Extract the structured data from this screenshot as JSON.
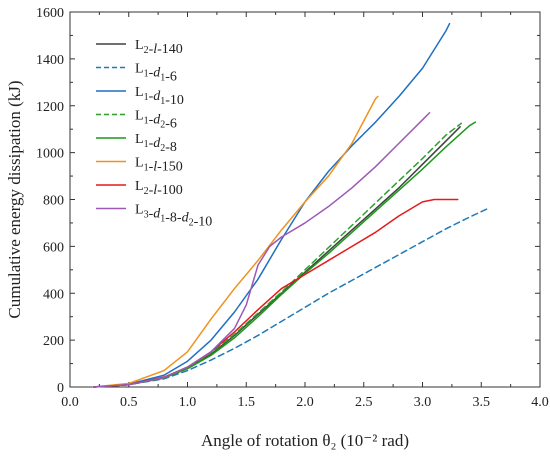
{
  "chart_data": {
    "type": "line",
    "title": "",
    "xlabel": "Angle of rotation θ₂ (10⁻² rad)",
    "ylabel": "Cumulative energy dissipation (kJ)",
    "xlim": [
      0.0,
      4.0
    ],
    "ylim": [
      0,
      1600
    ],
    "xticks": [
      "0.0",
      "0.5",
      "1.0",
      "1.5",
      "2.0",
      "2.5",
      "3.0",
      "3.5",
      "4.0"
    ],
    "yticks": [
      "0",
      "200",
      "400",
      "600",
      "800",
      "1000",
      "1200",
      "1400",
      "1600"
    ],
    "grid": false,
    "legend_position": "top-left",
    "series": [
      {
        "name": "L2-l-140",
        "label_parts": [
          [
            "L",
            ""
          ],
          [
            "2",
            "sub"
          ],
          [
            "-",
            ""
          ],
          [
            "l",
            "it"
          ],
          [
            "-140",
            ""
          ]
        ],
        "color": "#404040",
        "dash": "solid",
        "x": [
          0.2,
          0.5,
          0.8,
          1.0,
          1.2,
          1.4,
          1.6,
          1.8,
          2.0,
          2.2,
          2.4,
          2.6,
          2.8,
          3.0,
          3.2,
          3.32
        ],
        "y": [
          0,
          10,
          40,
          80,
          140,
          220,
          310,
          400,
          490,
          580,
          670,
          760,
          850,
          950,
          1050,
          1110
        ]
      },
      {
        "name": "L1-d1-6",
        "label_parts": [
          [
            "L",
            ""
          ],
          [
            "1",
            "sub"
          ],
          [
            "-",
            ""
          ],
          [
            "d",
            "it"
          ],
          [
            "1",
            "sub"
          ],
          [
            "-6",
            ""
          ]
        ],
        "color": "#1f7ab5",
        "dash": "dashed",
        "x": [
          0.2,
          0.5,
          0.8,
          1.0,
          1.2,
          1.4,
          1.6,
          1.8,
          2.0,
          2.2,
          2.4,
          2.6,
          2.8,
          3.0,
          3.2,
          3.4,
          3.55
        ],
        "y": [
          0,
          10,
          35,
          70,
          115,
          165,
          220,
          280,
          340,
          400,
          455,
          510,
          565,
          620,
          675,
          725,
          760
        ]
      },
      {
        "name": "L1-d1-10",
        "label_parts": [
          [
            "L",
            ""
          ],
          [
            "1",
            "sub"
          ],
          [
            "-",
            ""
          ],
          [
            "d",
            "it"
          ],
          [
            "1",
            "sub"
          ],
          [
            "-10",
            ""
          ]
        ],
        "color": "#1f6fc2",
        "dash": "solid",
        "x": [
          0.2,
          0.5,
          0.8,
          1.0,
          1.2,
          1.4,
          1.6,
          1.8,
          2.0,
          2.2,
          2.4,
          2.6,
          2.8,
          3.0,
          3.2,
          3.23
        ],
        "y": [
          0,
          12,
          50,
          110,
          200,
          320,
          460,
          630,
          790,
          920,
          1030,
          1130,
          1240,
          1360,
          1520,
          1550
        ]
      },
      {
        "name": "L1-d2-6",
        "label_parts": [
          [
            "L",
            ""
          ],
          [
            "1",
            "sub"
          ],
          [
            "-",
            ""
          ],
          [
            "d",
            "it"
          ],
          [
            "2",
            "sub"
          ],
          [
            "-6",
            ""
          ]
        ],
        "color": "#2ca02c",
        "dash": "dashed",
        "x": [
          0.2,
          0.5,
          0.8,
          1.0,
          1.2,
          1.4,
          1.6,
          1.8,
          2.0,
          2.2,
          2.4,
          2.6,
          2.8,
          3.0,
          3.2,
          3.33
        ],
        "y": [
          0,
          10,
          40,
          82,
          145,
          225,
          315,
          405,
          500,
          595,
          690,
          785,
          880,
          975,
          1075,
          1125
        ]
      },
      {
        "name": "L1-d2-8",
        "label_parts": [
          [
            "L",
            ""
          ],
          [
            "1",
            "sub"
          ],
          [
            "-",
            ""
          ],
          [
            "d",
            "it"
          ],
          [
            "2",
            "sub"
          ],
          [
            "-8",
            ""
          ]
        ],
        "color": "#1a9a1a",
        "dash": "solid",
        "x": [
          0.2,
          0.5,
          0.8,
          1.0,
          1.2,
          1.4,
          1.6,
          1.8,
          2.0,
          2.2,
          2.4,
          2.6,
          2.8,
          3.0,
          3.2,
          3.4,
          3.45
        ],
        "y": [
          0,
          10,
          38,
          78,
          135,
          210,
          300,
          395,
          485,
          570,
          660,
          750,
          840,
          930,
          1025,
          1115,
          1130
        ]
      },
      {
        "name": "L1-l-150",
        "label_parts": [
          [
            "L",
            ""
          ],
          [
            "1",
            "sub"
          ],
          [
            "-",
            ""
          ],
          [
            "l",
            "it"
          ],
          [
            "-150",
            ""
          ]
        ],
        "color": "#f0921e",
        "dash": "solid",
        "x": [
          0.2,
          0.5,
          0.8,
          1.0,
          1.2,
          1.4,
          1.6,
          1.8,
          2.0,
          2.2,
          2.4,
          2.6,
          2.62
        ],
        "y": [
          0,
          15,
          70,
          150,
          290,
          420,
          540,
          670,
          790,
          900,
          1040,
          1230,
          1240
        ]
      },
      {
        "name": "L2-l-100",
        "label_parts": [
          [
            "L",
            ""
          ],
          [
            "2",
            "sub"
          ],
          [
            "-",
            ""
          ],
          [
            "l",
            "it"
          ],
          [
            "-100",
            ""
          ]
        ],
        "color": "#e41a1c",
        "dash": "solid",
        "x": [
          0.2,
          0.5,
          0.8,
          1.0,
          1.2,
          1.4,
          1.6,
          1.8,
          2.0,
          2.2,
          2.4,
          2.6,
          2.8,
          3.0,
          3.1,
          3.2,
          3.3
        ],
        "y": [
          0,
          10,
          42,
          85,
          150,
          235,
          330,
          420,
          480,
          540,
          600,
          660,
          730,
          790,
          800,
          800,
          800
        ]
      },
      {
        "name": "L3-d1-8-d2-10",
        "label_parts": [
          [
            "L",
            ""
          ],
          [
            "3",
            "sub"
          ],
          [
            "-",
            ""
          ],
          [
            "d",
            "it"
          ],
          [
            "1",
            "sub"
          ],
          [
            "-8-",
            ""
          ],
          [
            "d",
            "it"
          ],
          [
            "2",
            "sub"
          ],
          [
            "-10",
            ""
          ]
        ],
        "color": "#9b59b6",
        "dash": "solid",
        "x": [
          0.2,
          0.5,
          0.8,
          1.0,
          1.2,
          1.4,
          1.5,
          1.6,
          1.7,
          1.8,
          2.0,
          2.2,
          2.4,
          2.6,
          2.8,
          3.0,
          3.06
        ],
        "y": [
          0,
          10,
          40,
          85,
          150,
          250,
          350,
          520,
          600,
          640,
          700,
          770,
          850,
          940,
          1040,
          1140,
          1170
        ]
      }
    ]
  }
}
